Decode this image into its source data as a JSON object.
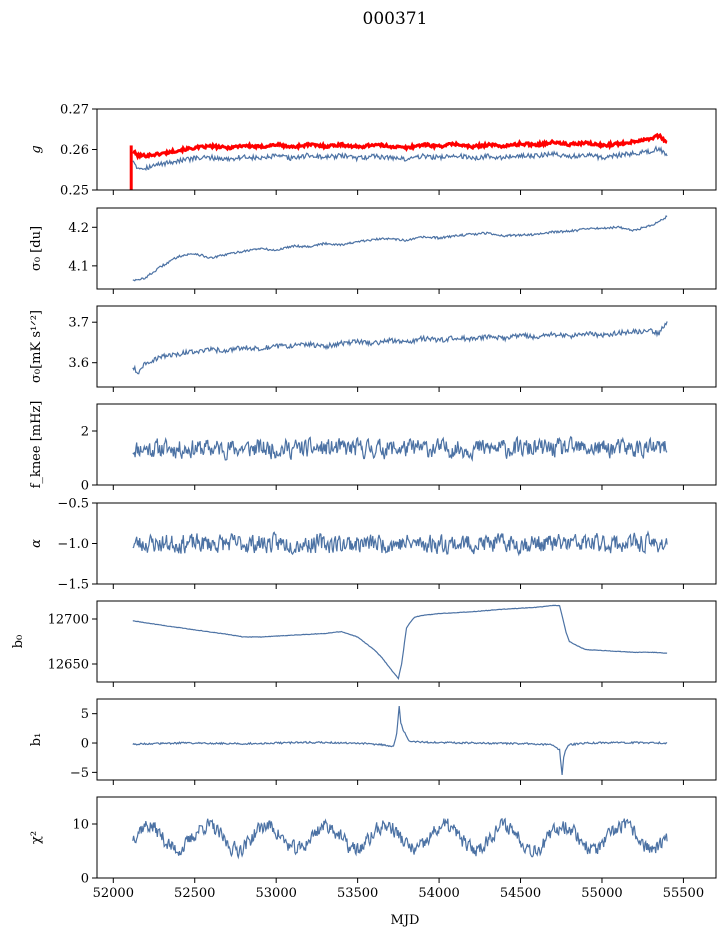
{
  "title": "000371",
  "xlabel": "MJD",
  "colors": {
    "series": "#4c72a4",
    "highlight": "#ff0000",
    "frame": "#000000"
  },
  "chart_data": [
    {
      "type": "line",
      "id": "g",
      "ylabel": "g",
      "xlim": [
        51900,
        55700
      ],
      "ylim": [
        0.25,
        0.27
      ],
      "yticks": [
        0.25,
        0.26,
        0.27
      ],
      "ytick_labels": [
        "0.25",
        "0.26",
        "0.27"
      ],
      "series": [
        {
          "color": "#4c72a4",
          "x": [
            52120,
            52150,
            52200,
            52300,
            52400,
            52500,
            52600,
            52700,
            52800,
            52900,
            53000,
            53100,
            53200,
            53300,
            53400,
            53500,
            53600,
            53700,
            53800,
            53900,
            54000,
            54100,
            54200,
            54300,
            54400,
            54500,
            54600,
            54700,
            54800,
            54900,
            55000,
            55100,
            55200,
            55300,
            55350,
            55400
          ],
          "y": [
            0.2575,
            0.2555,
            0.2555,
            0.2565,
            0.2572,
            0.2578,
            0.258,
            0.2576,
            0.2582,
            0.2578,
            0.2584,
            0.2578,
            0.2586,
            0.258,
            0.2585,
            0.2578,
            0.2584,
            0.258,
            0.2576,
            0.2584,
            0.258,
            0.2586,
            0.2578,
            0.2584,
            0.258,
            0.2586,
            0.2584,
            0.259,
            0.2582,
            0.2588,
            0.258,
            0.2586,
            0.259,
            0.2596,
            0.2604,
            0.2584
          ]
        },
        {
          "color": "#ff0000",
          "x": [
            52120,
            52150,
            52200,
            52300,
            52400,
            52500,
            52600,
            52700,
            52800,
            52900,
            53000,
            53100,
            53200,
            53300,
            53400,
            53500,
            53600,
            53700,
            53800,
            53900,
            54000,
            54100,
            54200,
            54300,
            54400,
            54500,
            54600,
            54700,
            54800,
            54900,
            55000,
            55100,
            55200,
            55300,
            55350,
            55400
          ],
          "y": [
            0.2596,
            0.2585,
            0.2585,
            0.259,
            0.2598,
            0.2604,
            0.2608,
            0.2604,
            0.261,
            0.2606,
            0.2612,
            0.2606,
            0.2612,
            0.2608,
            0.2612,
            0.2606,
            0.2612,
            0.2608,
            0.2604,
            0.2612,
            0.2608,
            0.2614,
            0.2606,
            0.2612,
            0.2608,
            0.2614,
            0.2612,
            0.2618,
            0.2612,
            0.2616,
            0.261,
            0.2614,
            0.262,
            0.2628,
            0.2634,
            0.2618
          ]
        }
      ]
    },
    {
      "type": "line",
      "id": "sigma-du",
      "ylabel": "σ₀ [du]",
      "xlim": [
        51900,
        55700
      ],
      "ylim": [
        4.04,
        4.25
      ],
      "yticks": [
        4.1,
        4.2
      ],
      "ytick_labels": [
        "4.1",
        "4.2"
      ],
      "series": [
        {
          "color": "#4c72a4",
          "x": [
            52120,
            52150,
            52200,
            52250,
            52300,
            52350,
            52400,
            52500,
            52600,
            52700,
            52800,
            52900,
            53000,
            53100,
            53200,
            53300,
            53400,
            53500,
            53600,
            53700,
            53800,
            53900,
            54000,
            54100,
            54200,
            54300,
            54400,
            54500,
            54600,
            54700,
            54800,
            54900,
            55000,
            55100,
            55200,
            55300,
            55350,
            55400
          ],
          "y": [
            4.065,
            4.062,
            4.07,
            4.085,
            4.1,
            4.112,
            4.125,
            4.132,
            4.12,
            4.13,
            4.138,
            4.145,
            4.14,
            4.152,
            4.15,
            4.158,
            4.155,
            4.162,
            4.168,
            4.172,
            4.165,
            4.175,
            4.172,
            4.178,
            4.182,
            4.185,
            4.178,
            4.18,
            4.182,
            4.188,
            4.19,
            4.195,
            4.198,
            4.2,
            4.192,
            4.205,
            4.215,
            4.228
          ]
        }
      ]
    },
    {
      "type": "line",
      "id": "sigma-mks",
      "ylabel": "σ₀[mK s¹ᐟ²]",
      "xlim": [
        51900,
        55700
      ],
      "ylim": [
        3.54,
        3.74
      ],
      "yticks": [
        3.6,
        3.7
      ],
      "ytick_labels": [
        "3.6",
        "3.7"
      ],
      "series": [
        {
          "color": "#4c72a4",
          "x": [
            52120,
            52150,
            52200,
            52300,
            52400,
            52500,
            52600,
            52700,
            52800,
            52900,
            53000,
            53100,
            53200,
            53300,
            53400,
            53500,
            53600,
            53700,
            53800,
            53900,
            54000,
            54100,
            54200,
            54300,
            54400,
            54500,
            54600,
            54700,
            54800,
            54900,
            55000,
            55100,
            55200,
            55300,
            55350,
            55400
          ],
          "y": [
            3.59,
            3.575,
            3.6,
            3.615,
            3.622,
            3.628,
            3.632,
            3.63,
            3.638,
            3.635,
            3.64,
            3.642,
            3.645,
            3.64,
            3.648,
            3.652,
            3.648,
            3.655,
            3.65,
            3.66,
            3.655,
            3.662,
            3.658,
            3.665,
            3.66,
            3.668,
            3.662,
            3.67,
            3.665,
            3.672,
            3.668,
            3.674,
            3.676,
            3.678,
            3.672,
            3.702
          ]
        }
      ]
    },
    {
      "type": "line",
      "id": "fknee",
      "ylabel": "f_knee [mHz]",
      "xlim": [
        51900,
        55700
      ],
      "ylim": [
        0,
        3
      ],
      "yticks": [
        0,
        2
      ],
      "ytick_labels": [
        "0",
        "2"
      ],
      "noise": {
        "x_start": 52120,
        "x_end": 55400,
        "mean": 1.35,
        "amp": 0.3,
        "seed": 11,
        "n": 700
      }
    },
    {
      "type": "line",
      "id": "alpha",
      "ylabel": "α",
      "xlim": [
        51900,
        55700
      ],
      "ylim": [
        -1.5,
        -0.5
      ],
      "yticks": [
        -1.5,
        -1.0,
        -0.5
      ],
      "ytick_labels": [
        "−1.5",
        "−1.0",
        "−0.5"
      ],
      "noise": {
        "x_start": 52120,
        "x_end": 55400,
        "mean": -1.0,
        "amp": 0.1,
        "seed": 23,
        "n": 700
      }
    },
    {
      "type": "line",
      "id": "b0",
      "ylabel": "b₀",
      "xlim": [
        51900,
        55700
      ],
      "ylim": [
        12630,
        12720
      ],
      "yticks": [
        12650,
        12700
      ],
      "ytick_labels": [
        "12650",
        "12700"
      ],
      "series": [
        {
          "color": "#4c72a4",
          "x": [
            52120,
            52300,
            52500,
            52700,
            52800,
            52900,
            53000,
            53200,
            53300,
            53400,
            53500,
            53600,
            53650,
            53700,
            53750,
            53770,
            53800,
            53830,
            53850,
            53900,
            54000,
            54200,
            54400,
            54600,
            54700,
            54740,
            54760,
            54780,
            54800,
            54850,
            54900,
            55000,
            55100,
            55200,
            55300,
            55400
          ],
          "y": [
            12698,
            12693,
            12688,
            12683,
            12680,
            12680,
            12681,
            12683,
            12684,
            12686,
            12680,
            12666,
            12657,
            12645,
            12634,
            12650,
            12690,
            12698,
            12702,
            12704,
            12706,
            12708,
            12711,
            12713,
            12715,
            12715,
            12700,
            12685,
            12675,
            12670,
            12666,
            12665,
            12664,
            12663,
            12663,
            12662
          ]
        }
      ]
    },
    {
      "type": "line",
      "id": "b1",
      "ylabel": "b₁",
      "xlim": [
        51900,
        55700
      ],
      "ylim": [
        -6.3,
        7.5
      ],
      "yticks": [
        -5,
        0,
        5
      ],
      "ytick_labels": [
        "−5",
        "0",
        "5"
      ],
      "series": [
        {
          "color": "#4c72a4",
          "x": [
            52120,
            52400,
            52800,
            53200,
            53500,
            53650,
            53720,
            53740,
            53755,
            53765,
            53775,
            53790,
            53810,
            53850,
            53950,
            54200,
            54500,
            54700,
            54740,
            54755,
            54765,
            54780,
            54800,
            54900,
            55100,
            55400
          ],
          "y": [
            -0.2,
            0.0,
            -0.1,
            0.1,
            0.0,
            -0.3,
            -0.6,
            1.5,
            6.4,
            3.5,
            2.5,
            1.8,
            0.5,
            0.2,
            0.1,
            0.0,
            -0.1,
            -0.3,
            -1.2,
            -5.5,
            -2.5,
            -1.0,
            -0.3,
            0.0,
            0.1,
            0.0
          ]
        }
      ]
    },
    {
      "type": "line",
      "id": "chi2",
      "ylabel": "χ²",
      "xlim": [
        51900,
        55700
      ],
      "ylim": [
        0,
        15
      ],
      "yticks": [
        0,
        10
      ],
      "ytick_labels": [
        "0",
        "10"
      ],
      "noise": {
        "x_start": 52120,
        "x_end": 55400,
        "mean": 7.5,
        "amp": 1.2,
        "seed": 37,
        "n": 700,
        "period": 365,
        "wave": 2.2
      }
    }
  ],
  "xticks": [
    52000,
    52500,
    53000,
    53500,
    54000,
    54500,
    55000,
    55500
  ],
  "xtick_labels": [
    "52000",
    "52500",
    "53000",
    "53500",
    "54000",
    "54500",
    "55000",
    "55500"
  ]
}
